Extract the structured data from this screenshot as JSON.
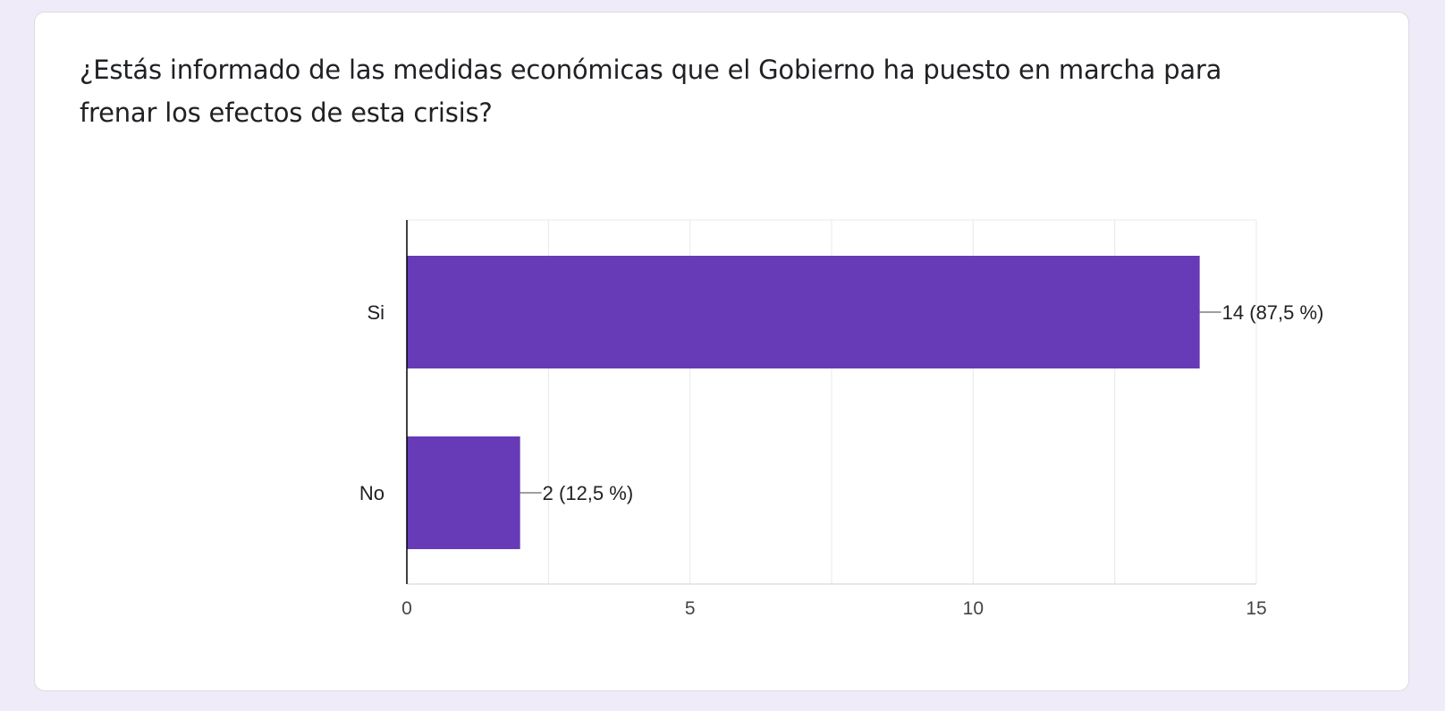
{
  "question": {
    "title": "¿Estás informado de las medidas económicas que el Gobierno ha puesto en marcha para frenar los efectos de esta crisis?"
  },
  "colors": {
    "bar": "#673ab7",
    "page_background": "#f0ebf8",
    "card_background": "#ffffff",
    "gridline": "#e8e8e8",
    "axis": "#000000",
    "text": "#202124",
    "leader_line": "#666666"
  },
  "chart_data": {
    "type": "bar",
    "orientation": "horizontal",
    "categories": [
      "Si",
      "No"
    ],
    "values": [
      14,
      2
    ],
    "data_labels": [
      "14 (87,5 %)",
      "2 (12,5 %)"
    ],
    "xlim": [
      0,
      15
    ],
    "x_ticks": [
      0,
      5,
      10,
      15
    ],
    "x_tick_labels": [
      "0",
      "5",
      "10",
      "15"
    ],
    "minor_gridlines": true,
    "legend": "none"
  }
}
